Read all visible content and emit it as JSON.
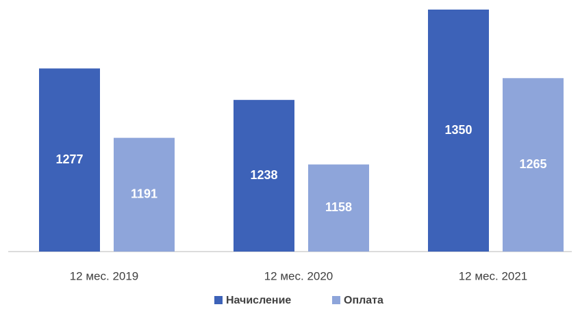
{
  "chart_data": {
    "type": "bar",
    "categories": [
      "12 мес. 2019",
      "12 мес. 2020",
      "12 мес. 2021"
    ],
    "series": [
      {
        "name": "Начисление",
        "color": "#3d62b8",
        "values": [
          1277,
          1238,
          1350
        ]
      },
      {
        "name": "Оплата",
        "color": "#8ea5da",
        "values": [
          1191,
          1158,
          1265
        ]
      }
    ],
    "ylim": [
      1050,
      1350
    ]
  }
}
